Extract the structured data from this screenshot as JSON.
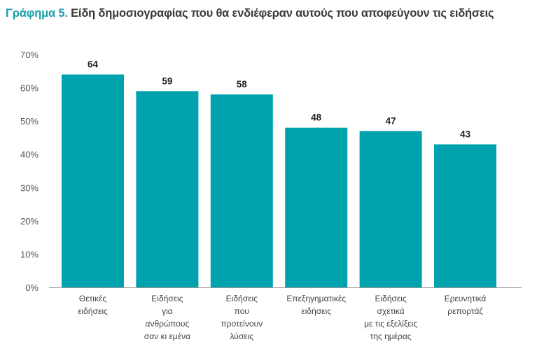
{
  "title_prefix": "Γράφημα 5.",
  "title_text": "Είδη δημοσιογραφίας που θα ενδιέφεραν αυτούς που αποφεύγουν τις ειδήσεις",
  "colors": {
    "bar": "#00A3AD",
    "title_accent": "#1a9fa8"
  },
  "chart_data": {
    "type": "bar",
    "title": "Γράφημα 5. Είδη δημοσιογραφίας που θα ενδιέφεραν αυτούς που αποφεύγουν τις ειδήσεις",
    "categories": [
      [
        "Θετικές",
        "ειδήσεις"
      ],
      [
        "Ειδήσεις",
        "για",
        "ανθρώπους",
        "σαν κι εμένα"
      ],
      [
        "Ειδήσεις",
        "που",
        "προτείνουν",
        "λύσεις"
      ],
      [
        "Επεξηγηματικές",
        "ειδήσεις"
      ],
      [
        "Ειδήσεις",
        "σχετικά",
        "με τις εξελίξεις",
        "της ημέρας"
      ],
      [
        "Ερευνητικά",
        "ρεπορτάζ"
      ]
    ],
    "values": [
      64,
      59,
      58,
      48,
      47,
      43
    ],
    "ylim": [
      0,
      70
    ],
    "yticks": [
      "0%",
      "10%",
      "20%",
      "30%",
      "40%",
      "50%",
      "60%",
      "70%"
    ],
    "xlabel": "",
    "ylabel": "",
    "grid": false,
    "legend": "none"
  }
}
